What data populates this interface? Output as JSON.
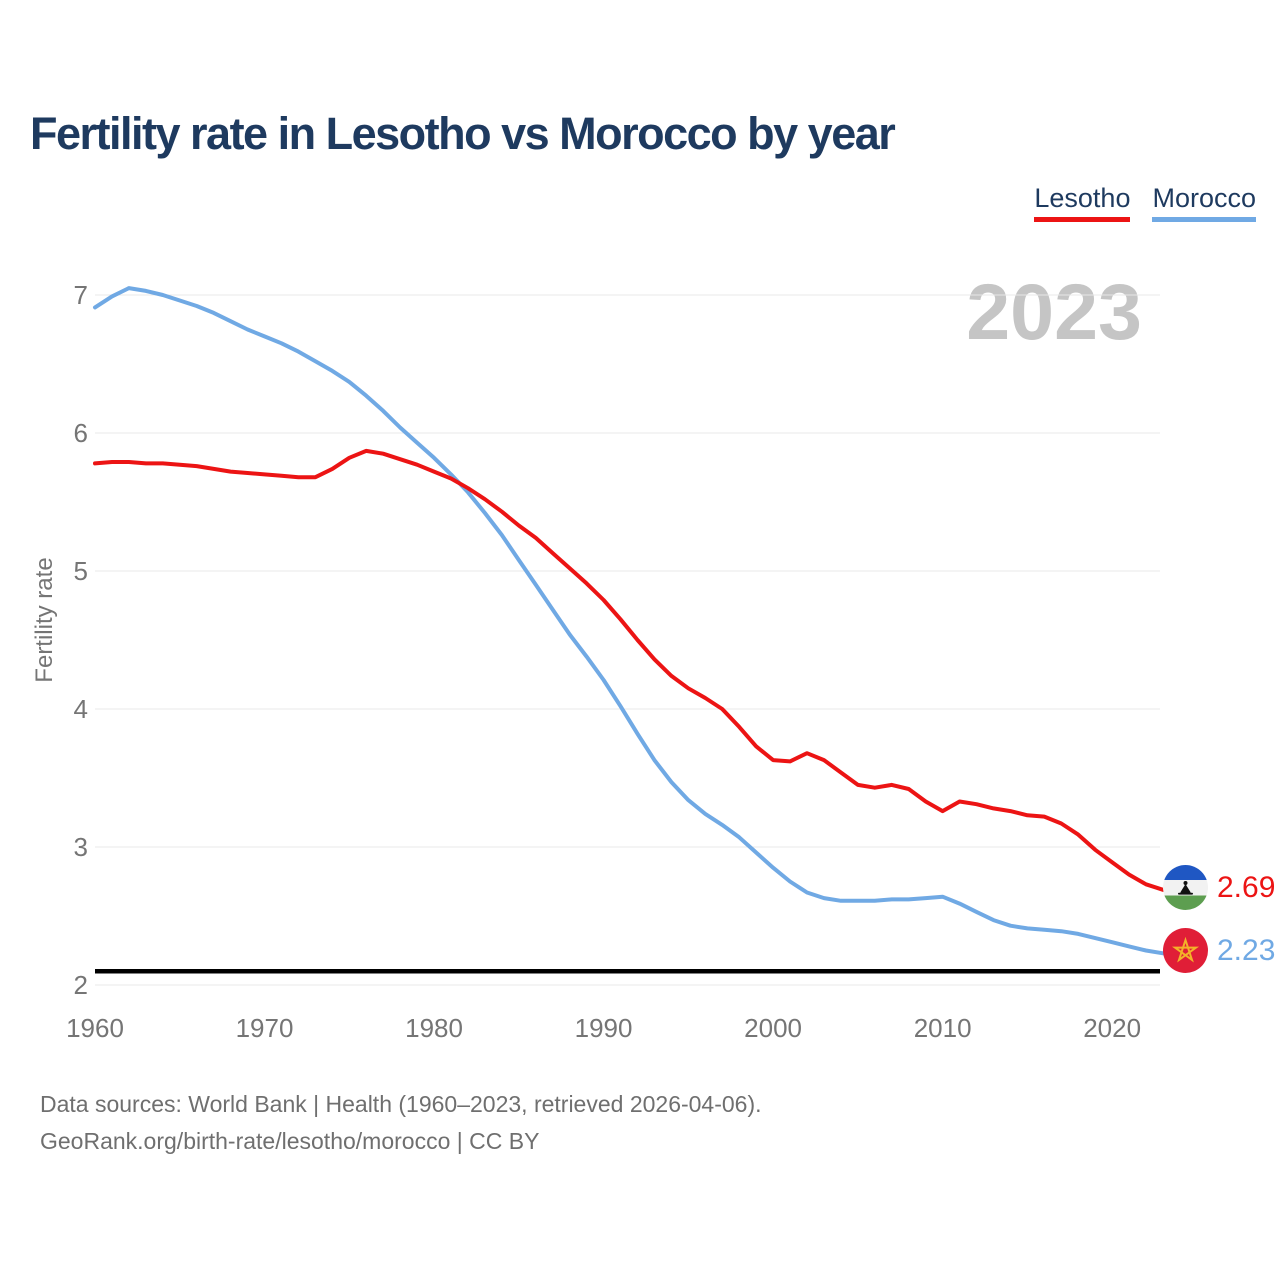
{
  "title": "Fertility rate in Lesotho vs Morocco by year",
  "watermark": "2023",
  "legend": {
    "items": [
      {
        "label": "Lesotho",
        "color": "#ec1414"
      },
      {
        "label": "Morocco",
        "color": "#70a9e4"
      }
    ]
  },
  "colors": {
    "lesotho": "#ec1414",
    "morocco": "#70a9e4",
    "title_text": "#1e3a5f",
    "axis_text": "#757575",
    "gridline": "#e8e8e8",
    "watermark": "#c5c5c5",
    "reference_line": "#000000",
    "footer_text": "#6f6f6f"
  },
  "end_labels": [
    {
      "series": "Lesotho",
      "value": "2.69",
      "flag": "lesotho-flag"
    },
    {
      "series": "Morocco",
      "value": "2.23",
      "flag": "morocco-flag"
    }
  ],
  "footer": {
    "line1": "Data sources: World Bank | Health (1960–2023, retrieved 2026-04-06).",
    "line2": "GeoRank.org/birth-rate/lesotho/morocco | CC BY"
  },
  "chart_data": {
    "type": "line",
    "title": "Fertility rate in Lesotho vs Morocco by year",
    "xlabel": "",
    "ylabel": "Fertility rate",
    "xlim": [
      1960,
      2023
    ],
    "ylim": [
      2,
      7.1
    ],
    "grid": true,
    "legend_position": "top-right",
    "reference_line": 2.1,
    "x_ticks": [
      1960,
      1970,
      1980,
      1990,
      2000,
      2010,
      2020
    ],
    "y_ticks": [
      7,
      6,
      5,
      4,
      3,
      2
    ],
    "x": [
      1960,
      1961,
      1962,
      1963,
      1964,
      1965,
      1966,
      1967,
      1968,
      1969,
      1970,
      1971,
      1972,
      1973,
      1974,
      1975,
      1976,
      1977,
      1978,
      1979,
      1980,
      1981,
      1982,
      1983,
      1984,
      1985,
      1986,
      1987,
      1988,
      1989,
      1990,
      1991,
      1992,
      1993,
      1994,
      1995,
      1996,
      1997,
      1998,
      1999,
      2000,
      2001,
      2002,
      2003,
      2004,
      2005,
      2006,
      2007,
      2008,
      2009,
      2010,
      2011,
      2012,
      2013,
      2014,
      2015,
      2016,
      2017,
      2018,
      2019,
      2020,
      2021,
      2022,
      2023
    ],
    "series": [
      {
        "name": "Lesotho",
        "color": "#ec1414",
        "values": [
          5.78,
          5.79,
          5.79,
          5.78,
          5.78,
          5.77,
          5.76,
          5.74,
          5.72,
          5.71,
          5.7,
          5.69,
          5.68,
          5.68,
          5.74,
          5.82,
          5.87,
          5.85,
          5.81,
          5.77,
          5.72,
          5.67,
          5.6,
          5.52,
          5.43,
          5.33,
          5.24,
          5.13,
          5.02,
          4.91,
          4.79,
          4.65,
          4.5,
          4.36,
          4.24,
          4.15,
          4.08,
          4.0,
          3.87,
          3.73,
          3.63,
          3.62,
          3.68,
          3.63,
          3.54,
          3.45,
          3.43,
          3.45,
          3.42,
          3.33,
          3.26,
          3.33,
          3.31,
          3.28,
          3.26,
          3.23,
          3.22,
          3.17,
          3.09,
          2.98,
          2.89,
          2.8,
          2.73,
          2.69
        ]
      },
      {
        "name": "Morocco",
        "color": "#70a9e4",
        "values": [
          6.91,
          6.99,
          7.05,
          7.03,
          7.0,
          6.96,
          6.92,
          6.87,
          6.81,
          6.75,
          6.7,
          6.65,
          6.59,
          6.52,
          6.45,
          6.37,
          6.27,
          6.16,
          6.04,
          5.93,
          5.82,
          5.7,
          5.57,
          5.42,
          5.26,
          5.08,
          4.9,
          4.72,
          4.54,
          4.38,
          4.21,
          4.02,
          3.82,
          3.63,
          3.47,
          3.34,
          3.24,
          3.16,
          3.07,
          2.96,
          2.85,
          2.75,
          2.67,
          2.63,
          2.61,
          2.61,
          2.61,
          2.62,
          2.62,
          2.63,
          2.64,
          2.59,
          2.53,
          2.47,
          2.43,
          2.41,
          2.4,
          2.39,
          2.37,
          2.34,
          2.31,
          2.28,
          2.25,
          2.23
        ]
      }
    ]
  }
}
